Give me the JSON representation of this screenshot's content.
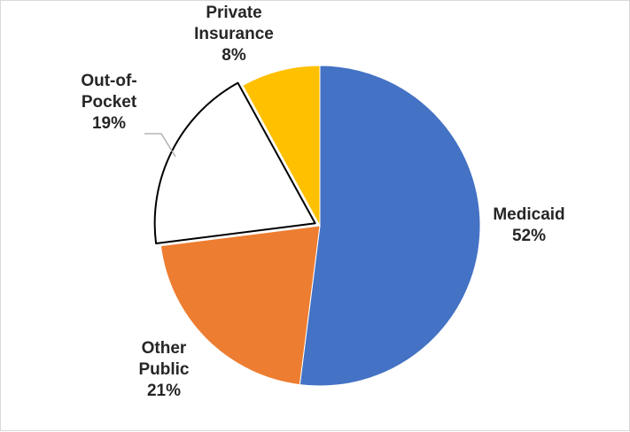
{
  "chart_data": {
    "type": "pie",
    "title": "",
    "slices": [
      {
        "label": "Medicaid",
        "value": 52,
        "display": "52%",
        "color": "#4472c4"
      },
      {
        "label": "Other Public",
        "value": 21,
        "display": "21%",
        "color": "#ed7d31"
      },
      {
        "label": "Out-of-Pocket",
        "value": 19,
        "display": "19%",
        "color": "#ffffff"
      },
      {
        "label": "Private Insurance",
        "value": 8,
        "display": "8%",
        "color": "#ffc000"
      }
    ],
    "start_angle_deg": 0,
    "direction": "clockwise",
    "exploded_slice": "Out-of-Pocket",
    "label_style": "category name and percentage, outside end",
    "leader_line": "Out-of-Pocket",
    "legend": "none"
  }
}
